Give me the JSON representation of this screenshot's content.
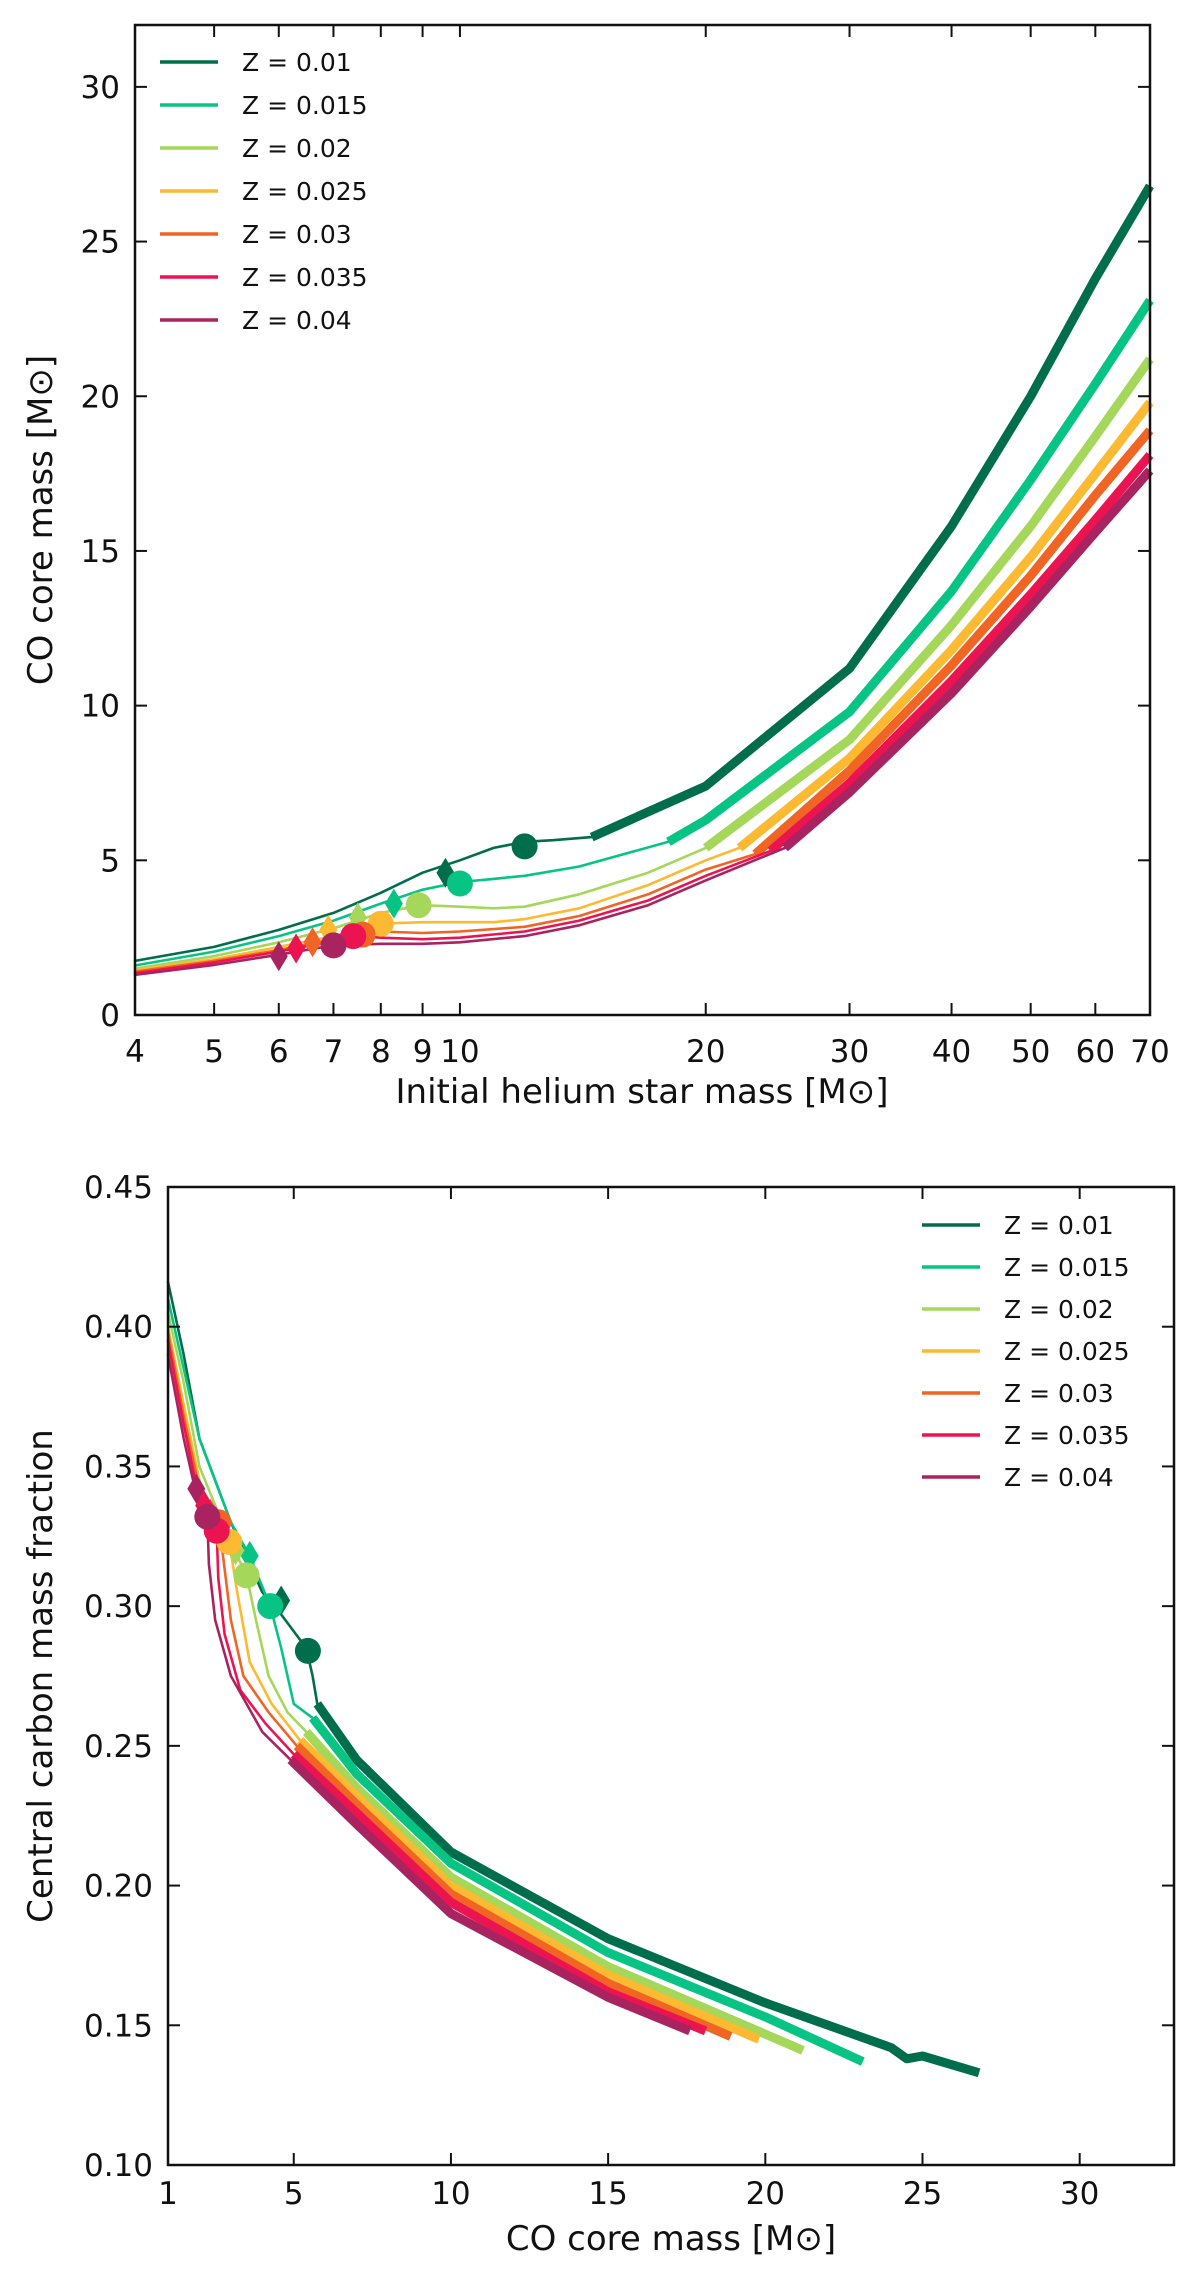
{
  "colors": {
    "Z = 0.01": "#006e4b",
    "Z = 0.015": "#08c484",
    "Z = 0.02": "#a4d75a",
    "Z = 0.025": "#fcb932",
    "Z = 0.03": "#f06424",
    "Z = 0.035": "#eb1450",
    "Z = 0.04": "#aa2361"
  },
  "chart_data": [
    {
      "type": "line",
      "xscale": "log",
      "xlabel": "Initial helium star mass [M⊙]",
      "ylabel": "CO core mass [M⊙]",
      "xlim": [
        4,
        70
      ],
      "ylim": [
        0,
        32
      ],
      "xticks": [
        4,
        5,
        6,
        7,
        8,
        9,
        10,
        20,
        30,
        40,
        50,
        60,
        70
      ],
      "xtick_labels": [
        "4",
        "5",
        "6",
        "7",
        "8",
        "9",
        "10",
        "20",
        "30",
        "40",
        "50",
        "60",
        "70"
      ],
      "yticks": [
        0,
        5,
        10,
        15,
        20,
        25,
        30
      ],
      "ytick_labels": [
        "0",
        "5",
        "10",
        "15",
        "20",
        "25",
        "30"
      ],
      "legend_position": "top-left",
      "series": [
        {
          "name": "Z = 0.01",
          "thick_from": 14.5,
          "points": [
            [
              4,
              1.75
            ],
            [
              5,
              2.2
            ],
            [
              6,
              2.75
            ],
            [
              7,
              3.3
            ],
            [
              8,
              3.95
            ],
            [
              9,
              4.6
            ],
            [
              10,
              5.0
            ],
            [
              11,
              5.4
            ],
            [
              12,
              5.6
            ],
            [
              13,
              5.65
            ],
            [
              14.5,
              5.75
            ],
            [
              20,
              7.4
            ],
            [
              30,
              11.2
            ],
            [
              40,
              15.8
            ],
            [
              50,
              20.0
            ],
            [
              60,
              23.8
            ],
            [
              70,
              26.8
            ]
          ],
          "diamond": [
            9.6,
            4.6
          ],
          "circle": [
            12.0,
            5.45
          ]
        },
        {
          "name": "Z = 0.015",
          "thick_from": 18,
          "points": [
            [
              4,
              1.6
            ],
            [
              5,
              2.05
            ],
            [
              6,
              2.55
            ],
            [
              7,
              3.05
            ],
            [
              8,
              3.6
            ],
            [
              9,
              4.05
            ],
            [
              10,
              4.3
            ],
            [
              11,
              4.4
            ],
            [
              12,
              4.5
            ],
            [
              14,
              4.8
            ],
            [
              18,
              5.6
            ],
            [
              20,
              6.3
            ],
            [
              30,
              9.8
            ],
            [
              40,
              13.7
            ],
            [
              50,
              17.3
            ],
            [
              60,
              20.4
            ],
            [
              70,
              23.1
            ]
          ],
          "diamond": [
            8.3,
            3.6
          ],
          "circle": [
            10.0,
            4.25
          ]
        },
        {
          "name": "Z = 0.02",
          "thick_from": 20,
          "points": [
            [
              4,
              1.5
            ],
            [
              5,
              1.9
            ],
            [
              6,
              2.35
            ],
            [
              7,
              2.8
            ],
            [
              8,
              3.3
            ],
            [
              9,
              3.55
            ],
            [
              10,
              3.5
            ],
            [
              11,
              3.45
            ],
            [
              12,
              3.5
            ],
            [
              14,
              3.9
            ],
            [
              17,
              4.6
            ],
            [
              20,
              5.4
            ],
            [
              30,
              8.9
            ],
            [
              40,
              12.6
            ],
            [
              50,
              15.8
            ],
            [
              60,
              18.7
            ],
            [
              70,
              21.2
            ]
          ],
          "diamond": [
            7.5,
            3.15
          ],
          "circle": [
            8.9,
            3.55
          ]
        },
        {
          "name": "Z = 0.025",
          "thick_from": 22,
          "points": [
            [
              4,
              1.45
            ],
            [
              5,
              1.8
            ],
            [
              6,
              2.2
            ],
            [
              7,
              2.55
            ],
            [
              8,
              2.95
            ],
            [
              9,
              3.0
            ],
            [
              10,
              3.0
            ],
            [
              11,
              3.0
            ],
            [
              12,
              3.1
            ],
            [
              14,
              3.45
            ],
            [
              17,
              4.2
            ],
            [
              20,
              5.0
            ],
            [
              22,
              5.4
            ],
            [
              30,
              8.3
            ],
            [
              40,
              11.8
            ],
            [
              50,
              14.8
            ],
            [
              60,
              17.5
            ],
            [
              70,
              19.8
            ]
          ],
          "diamond": [
            6.9,
            2.75
          ],
          "circle": [
            8.0,
            2.95
          ]
        },
        {
          "name": "Z = 0.03",
          "thick_from": 23,
          "points": [
            [
              4,
              1.4
            ],
            [
              5,
              1.75
            ],
            [
              6,
              2.1
            ],
            [
              7,
              2.45
            ],
            [
              7.6,
              2.65
            ],
            [
              8,
              2.7
            ],
            [
              9,
              2.65
            ],
            [
              10,
              2.7
            ],
            [
              12,
              2.85
            ],
            [
              14,
              3.2
            ],
            [
              17,
              3.9
            ],
            [
              20,
              4.7
            ],
            [
              23,
              5.2
            ],
            [
              30,
              7.9
            ],
            [
              40,
              11.3
            ],
            [
              50,
              14.2
            ],
            [
              60,
              16.8
            ],
            [
              70,
              18.9
            ]
          ],
          "diamond": [
            6.6,
            2.35
          ],
          "circle": [
            7.6,
            2.6
          ]
        },
        {
          "name": "Z = 0.035",
          "thick_from": 24,
          "points": [
            [
              4,
              1.35
            ],
            [
              5,
              1.7
            ],
            [
              6,
              2.05
            ],
            [
              7,
              2.4
            ],
            [
              7.5,
              2.55
            ],
            [
              8,
              2.5
            ],
            [
              9,
              2.45
            ],
            [
              10,
              2.5
            ],
            [
              12,
              2.7
            ],
            [
              14,
              3.05
            ],
            [
              17,
              3.7
            ],
            [
              20,
              4.5
            ],
            [
              24,
              5.3
            ],
            [
              30,
              7.5
            ],
            [
              40,
              10.8
            ],
            [
              50,
              13.6
            ],
            [
              60,
              16.0
            ],
            [
              70,
              18.1
            ]
          ],
          "diamond": [
            6.3,
            2.15
          ],
          "circle": [
            7.4,
            2.55
          ]
        },
        {
          "name": "Z = 0.04",
          "thick_from": 25,
          "points": [
            [
              4,
              1.3
            ],
            [
              5,
              1.62
            ],
            [
              6,
              1.95
            ],
            [
              7,
              2.25
            ],
            [
              8,
              2.3
            ],
            [
              9,
              2.3
            ],
            [
              10,
              2.35
            ],
            [
              12,
              2.55
            ],
            [
              14,
              2.9
            ],
            [
              17,
              3.55
            ],
            [
              20,
              4.35
            ],
            [
              25,
              5.4
            ],
            [
              30,
              7.2
            ],
            [
              40,
              10.4
            ],
            [
              50,
              13.2
            ],
            [
              60,
              15.6
            ],
            [
              70,
              17.6
            ]
          ],
          "diamond": [
            6.0,
            1.9
          ],
          "circle": [
            7.0,
            2.25
          ]
        }
      ]
    },
    {
      "type": "line",
      "xlabel": "CO core mass [M⊙]",
      "ylabel": "Central carbon mass fraction",
      "xlim": [
        1,
        33
      ],
      "ylim": [
        0.1,
        0.45
      ],
      "xticks": [
        1,
        5,
        10,
        15,
        20,
        25,
        30
      ],
      "xtick_labels": [
        "1",
        "5",
        "10",
        "15",
        "20",
        "25",
        "30"
      ],
      "yticks": [
        0.1,
        0.15,
        0.2,
        0.25,
        0.3,
        0.35,
        0.4,
        0.45
      ],
      "ytick_labels": [
        "0.10",
        "0.15",
        "0.20",
        "0.25",
        "0.30",
        "0.35",
        "0.40",
        "0.45"
      ],
      "legend_position": "top-right",
      "series": [
        {
          "name": "Z = 0.01",
          "thick_from": 5.75,
          "points": [
            [
              1,
              0.416
            ],
            [
              1.5,
              0.39
            ],
            [
              2,
              0.36
            ],
            [
              3,
              0.33
            ],
            [
              4,
              0.305
            ],
            [
              4.6,
              0.297
            ],
            [
              5.4,
              0.285
            ],
            [
              5.6,
              0.275
            ],
            [
              5.75,
              0.265
            ],
            [
              7,
              0.245
            ],
            [
              10,
              0.212
            ],
            [
              15,
              0.181
            ],
            [
              20,
              0.158
            ],
            [
              24,
              0.142
            ],
            [
              24.5,
              0.138
            ],
            [
              25,
              0.139
            ],
            [
              26.8,
              0.133
            ]
          ],
          "diamond": [
            4.6,
            0.302
          ],
          "circle": [
            5.45,
            0.284
          ]
        },
        {
          "name": "Z = 0.015",
          "thick_from": 5.6,
          "points": [
            [
              1,
              0.41
            ],
            [
              1.5,
              0.385
            ],
            [
              2,
              0.36
            ],
            [
              3,
              0.33
            ],
            [
              3.6,
              0.318
            ],
            [
              4.25,
              0.3
            ],
            [
              4.6,
              0.285
            ],
            [
              5,
              0.265
            ],
            [
              5.6,
              0.26
            ],
            [
              7,
              0.24
            ],
            [
              10,
              0.208
            ],
            [
              15,
              0.176
            ],
            [
              20,
              0.153
            ],
            [
              23.1,
              0.137
            ]
          ],
          "diamond": [
            3.6,
            0.318
          ],
          "circle": [
            4.25,
            0.3
          ]
        },
        {
          "name": "Z = 0.02",
          "thick_from": 5.4,
          "points": [
            [
              1,
              0.405
            ],
            [
              1.5,
              0.38
            ],
            [
              2,
              0.35
            ],
            [
              2.9,
              0.325
            ],
            [
              3.5,
              0.311
            ],
            [
              3.8,
              0.295
            ],
            [
              4.2,
              0.275
            ],
            [
              4.8,
              0.262
            ],
            [
              5.4,
              0.255
            ],
            [
              7,
              0.235
            ],
            [
              10,
              0.203
            ],
            [
              15,
              0.171
            ],
            [
              21.2,
              0.141
            ]
          ],
          "diamond": [
            3.15,
            0.32
          ],
          "circle": [
            3.5,
            0.311
          ]
        },
        {
          "name": "Z = 0.025",
          "thick_from": 5.2,
          "points": [
            [
              1,
              0.4
            ],
            [
              1.5,
              0.372
            ],
            [
              2,
              0.345
            ],
            [
              2.5,
              0.33
            ],
            [
              2.95,
              0.323
            ],
            [
              3.2,
              0.305
            ],
            [
              3.6,
              0.28
            ],
            [
              4.3,
              0.265
            ],
            [
              5.2,
              0.252
            ],
            [
              7,
              0.232
            ],
            [
              10,
              0.2
            ],
            [
              15,
              0.168
            ],
            [
              19.8,
              0.145
            ]
          ],
          "diamond": [
            2.75,
            0.326
          ],
          "circle": [
            2.95,
            0.323
          ]
        },
        {
          "name": "Z = 0.03",
          "thick_from": 5.1,
          "points": [
            [
              1,
              0.398
            ],
            [
              1.5,
              0.368
            ],
            [
              2,
              0.342
            ],
            [
              2.6,
              0.33
            ],
            [
              2.75,
              0.318
            ],
            [
              3.0,
              0.295
            ],
            [
              3.4,
              0.275
            ],
            [
              4.2,
              0.262
            ],
            [
              5.1,
              0.25
            ],
            [
              7,
              0.229
            ],
            [
              10,
              0.197
            ],
            [
              15,
              0.165
            ],
            [
              18.9,
              0.146
            ]
          ],
          "diamond": [
            2.35,
            0.333
          ],
          "circle": [
            2.6,
            0.33
          ]
        },
        {
          "name": "Z = 0.035",
          "thick_from": 5.0,
          "points": [
            [
              1,
              0.395
            ],
            [
              1.5,
              0.365
            ],
            [
              2,
              0.338
            ],
            [
              2.55,
              0.327
            ],
            [
              2.6,
              0.31
            ],
            [
              2.8,
              0.29
            ],
            [
              3.3,
              0.27
            ],
            [
              4.1,
              0.258
            ],
            [
              5,
              0.247
            ],
            [
              7,
              0.226
            ],
            [
              10,
              0.194
            ],
            [
              15,
              0.162
            ],
            [
              18.1,
              0.148
            ]
          ],
          "diamond": [
            2.15,
            0.336
          ],
          "circle": [
            2.55,
            0.327
          ]
        },
        {
          "name": "Z = 0.04",
          "thick_from": 4.9,
          "points": [
            [
              1,
              0.39
            ],
            [
              1.5,
              0.36
            ],
            [
              2,
              0.335
            ],
            [
              2.25,
              0.332
            ],
            [
              2.3,
              0.315
            ],
            [
              2.5,
              0.295
            ],
            [
              3.0,
              0.275
            ],
            [
              4.0,
              0.255
            ],
            [
              4.9,
              0.245
            ],
            [
              7,
              0.222
            ],
            [
              10,
              0.19
            ],
            [
              15,
              0.16
            ],
            [
              17.6,
              0.148
            ]
          ],
          "diamond": [
            1.9,
            0.342
          ],
          "circle": [
            2.25,
            0.332
          ]
        }
      ]
    }
  ]
}
